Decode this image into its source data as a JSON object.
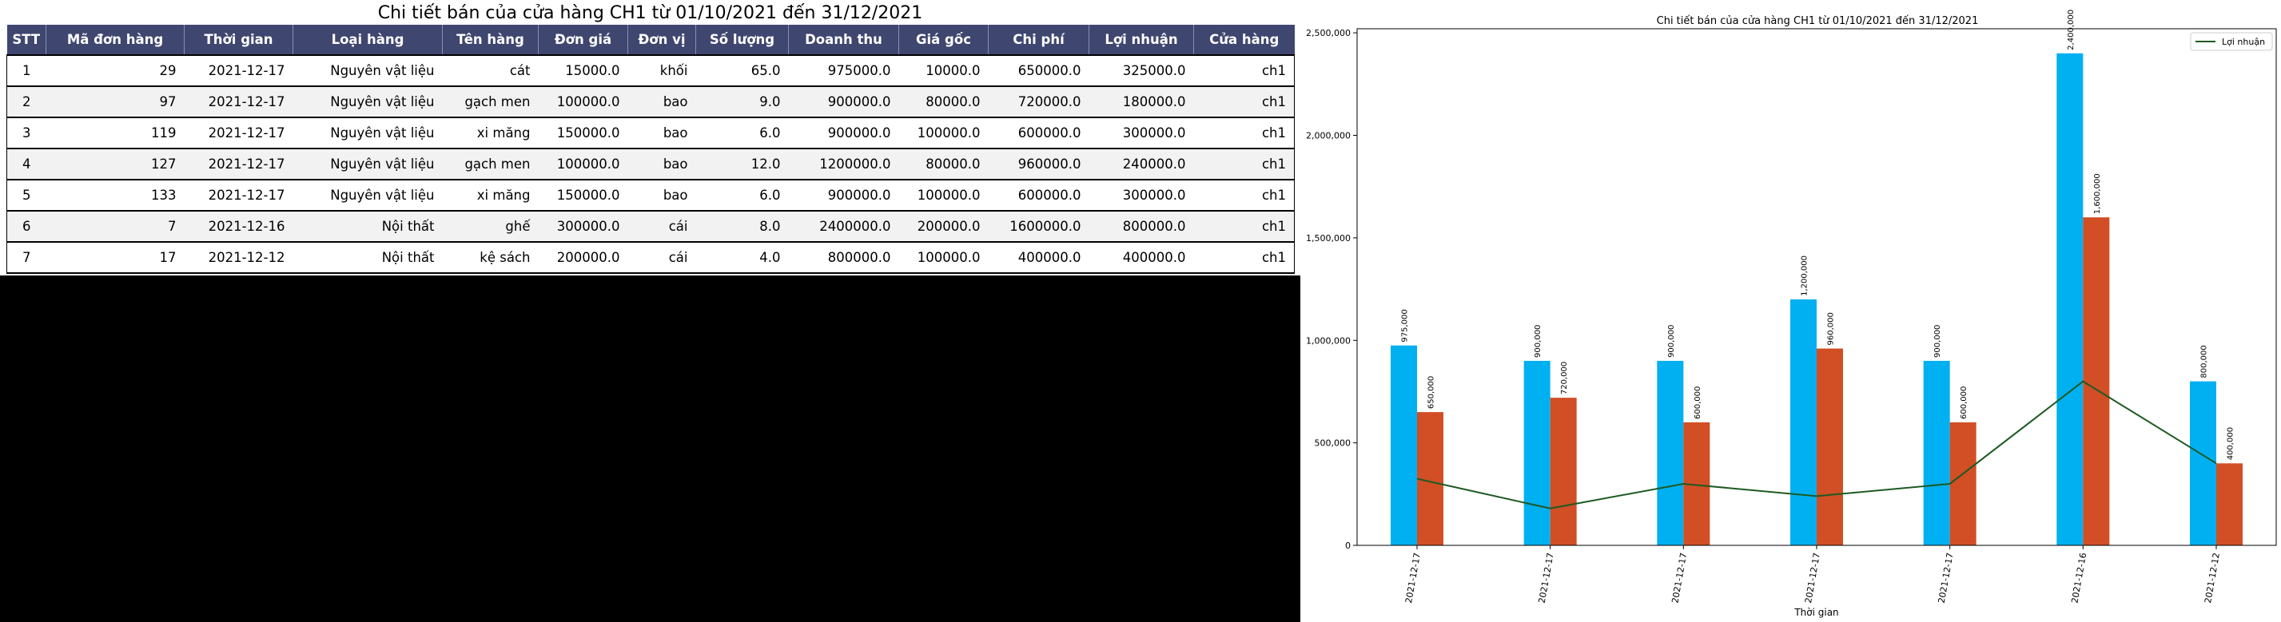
{
  "table": {
    "title": "Chi tiết bán của cửa hàng CH1 từ 01/10/2021 đến 31/12/2021",
    "columns": [
      "STT",
      "Mã đơn hàng",
      "Thời gian",
      "Loại hàng",
      "Tên hàng",
      "Đơn giá",
      "Đơn vị",
      "Số lượng",
      "Doanh thu",
      "Giá gốc",
      "Chi phí",
      "Lợi nhuận",
      "Cửa hàng"
    ],
    "rows": [
      [
        "1",
        "29",
        "2021-12-17",
        "Nguyên vật liệu",
        "cát",
        "15000.0",
        "khối",
        "65.0",
        "975000.0",
        "10000.0",
        "650000.0",
        "325000.0",
        "ch1"
      ],
      [
        "2",
        "97",
        "2021-12-17",
        "Nguyên vật liệu",
        "gạch men",
        "100000.0",
        "bao",
        "9.0",
        "900000.0",
        "80000.0",
        "720000.0",
        "180000.0",
        "ch1"
      ],
      [
        "3",
        "119",
        "2021-12-17",
        "Nguyên vật liệu",
        "xi măng",
        "150000.0",
        "bao",
        "6.0",
        "900000.0",
        "100000.0",
        "600000.0",
        "300000.0",
        "ch1"
      ],
      [
        "4",
        "127",
        "2021-12-17",
        "Nguyên vật liệu",
        "gạch men",
        "100000.0",
        "bao",
        "12.0",
        "1200000.0",
        "80000.0",
        "960000.0",
        "240000.0",
        "ch1"
      ],
      [
        "5",
        "133",
        "2021-12-17",
        "Nguyên vật liệu",
        "xi măng",
        "150000.0",
        "bao",
        "6.0",
        "900000.0",
        "100000.0",
        "600000.0",
        "300000.0",
        "ch1"
      ],
      [
        "6",
        "7",
        "2021-12-16",
        "Nội thất",
        "ghế",
        "300000.0",
        "cái",
        "8.0",
        "2400000.0",
        "200000.0",
        "1600000.0",
        "800000.0",
        "ch1"
      ],
      [
        "7",
        "17",
        "2021-12-12",
        "Nội thất",
        "kệ sách",
        "200000.0",
        "cái",
        "4.0",
        "800000.0",
        "100000.0",
        "400000.0",
        "400000.0",
        "ch1"
      ]
    ]
  },
  "chart_data": {
    "type": "bar",
    "title": "Chi tiết bán của cửa hàng CH1 từ 01/10/2021 đến 31/12/2021",
    "xlabel": "Thời gian",
    "ylabel": "",
    "categories": [
      "2021-12-17",
      "2021-12-17",
      "2021-12-17",
      "2021-12-17",
      "2021-12-17",
      "2021-12-16",
      "2021-12-12"
    ],
    "series": [
      {
        "type": "bar",
        "color": "#00b0f0",
        "values": [
          975000,
          900000,
          900000,
          1200000,
          900000,
          2400000,
          800000
        ],
        "labels": [
          "975,000",
          "900,000",
          "900,000",
          "1,200,000",
          "900,000",
          "2,400,000",
          "800,000"
        ]
      },
      {
        "type": "bar",
        "color": "#d24e25",
        "values": [
          650000,
          720000,
          600000,
          960000,
          600000,
          1600000,
          400000
        ],
        "labels": [
          "650,000",
          "720,000",
          "600,000",
          "960,000",
          "600,000",
          "1,600,000",
          "400,000"
        ]
      },
      {
        "type": "line",
        "name": "Lợi nhuận",
        "color": "#1d5a22",
        "values": [
          325000,
          180000,
          300000,
          240000,
          300000,
          800000,
          400000
        ]
      }
    ],
    "ylim": [
      0,
      2520000
    ],
    "yticks": [
      0,
      500000,
      1000000,
      1500000,
      2000000,
      2500000
    ],
    "ytick_labels": [
      "0",
      "500,000",
      "1,000,000",
      "1,500,000",
      "2,000,000",
      "2,500,000"
    ],
    "legend": {
      "position": "top-right",
      "entries": [
        "Lợi nhuận"
      ]
    },
    "grid": false
  }
}
